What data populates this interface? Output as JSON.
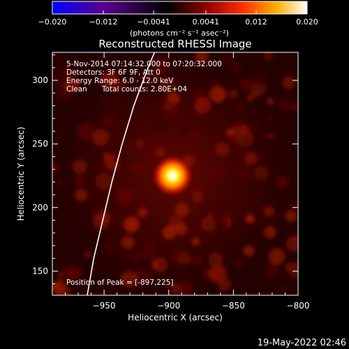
{
  "chart_data": {
    "type": "heatmap",
    "title": "Reconstructed RHESSI Image",
    "xlabel": "Heliocentric X (arcsec)",
    "ylabel": "Heliocentric Y (arcsec)",
    "xlim": [
      -990,
      -800
    ],
    "ylim": [
      131,
      322
    ],
    "x_ticks": [
      -950,
      -900,
      -850,
      -800
    ],
    "y_ticks": [
      150,
      200,
      250,
      300
    ],
    "colorbar": {
      "label": "(photons cm⁻² s⁻¹ asec⁻²)",
      "range": [
        -0.02,
        0.02
      ],
      "tick_values": [
        -0.02,
        -0.012,
        -0.0041,
        0.0041,
        0.012,
        0.02
      ],
      "tick_labels": [
        "−0.020",
        "−0.012",
        "−0.0041",
        "0.0041",
        "0.012",
        "0.020"
      ],
      "colormap": [
        "#0000ff",
        "#5a0090",
        "#000000",
        "#8a0000",
        "#ff3000",
        "#ffb000",
        "#ffffff"
      ]
    },
    "peak": {
      "x": -897,
      "y": 225
    },
    "annotations": [
      "5-Nov-2014 07:14:32.000 to 07:20:32.000",
      "Detectors: 3F 6F 9F, Att 0",
      "Energy Range: 6.0 - 12.0 keV",
      "Clean",
      "Total counts: 2.80E+04",
      "Position of Peak = [-897,225]"
    ],
    "limb_curve": [
      [
        -963,
        131
      ],
      [
        -958,
        160
      ],
      [
        -951,
        190
      ],
      [
        -944,
        220
      ],
      [
        -936,
        250
      ],
      [
        -927,
        280
      ],
      [
        -916,
        310
      ],
      [
        -911,
        322
      ]
    ]
  },
  "timestamp": "19-May-2022 02:46"
}
